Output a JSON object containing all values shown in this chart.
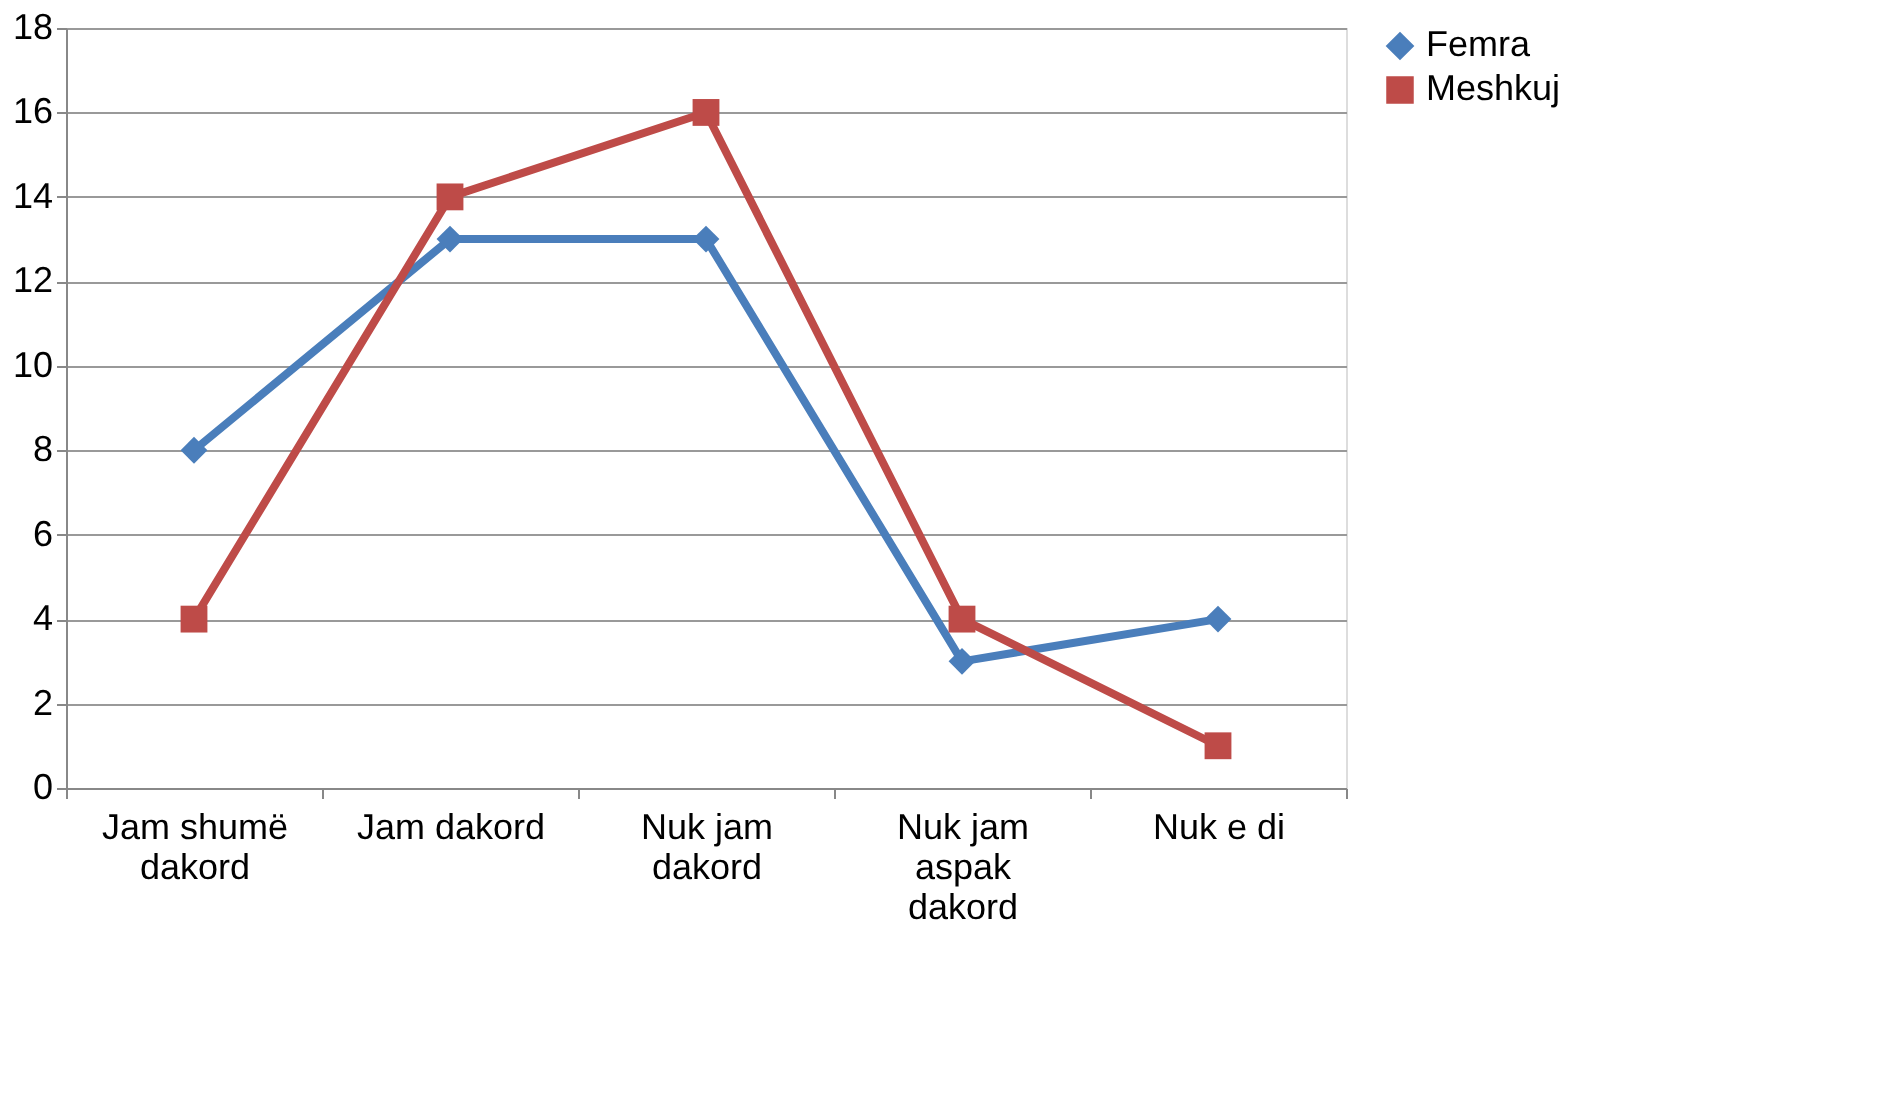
{
  "chart_data": {
    "type": "line",
    "categories": [
      "Jam shumë dakord",
      "Jam dakord",
      "Nuk jam dakord",
      "Nuk jam aspak dakord",
      "Nuk e di"
    ],
    "series": [
      {
        "name": "Femra",
        "color": "#4a7ebb",
        "marker": "diamond",
        "values": [
          8,
          13,
          13,
          3,
          4
        ]
      },
      {
        "name": "Meshkuj",
        "color": "#be4b48",
        "marker": "square",
        "values": [
          4,
          14,
          16,
          4,
          1
        ]
      }
    ],
    "ylim": [
      0,
      18
    ],
    "yticks": [
      0,
      2,
      4,
      6,
      8,
      10,
      12,
      14,
      16,
      18
    ],
    "grid": "y",
    "legend": "right",
    "line_style": "solid"
  }
}
